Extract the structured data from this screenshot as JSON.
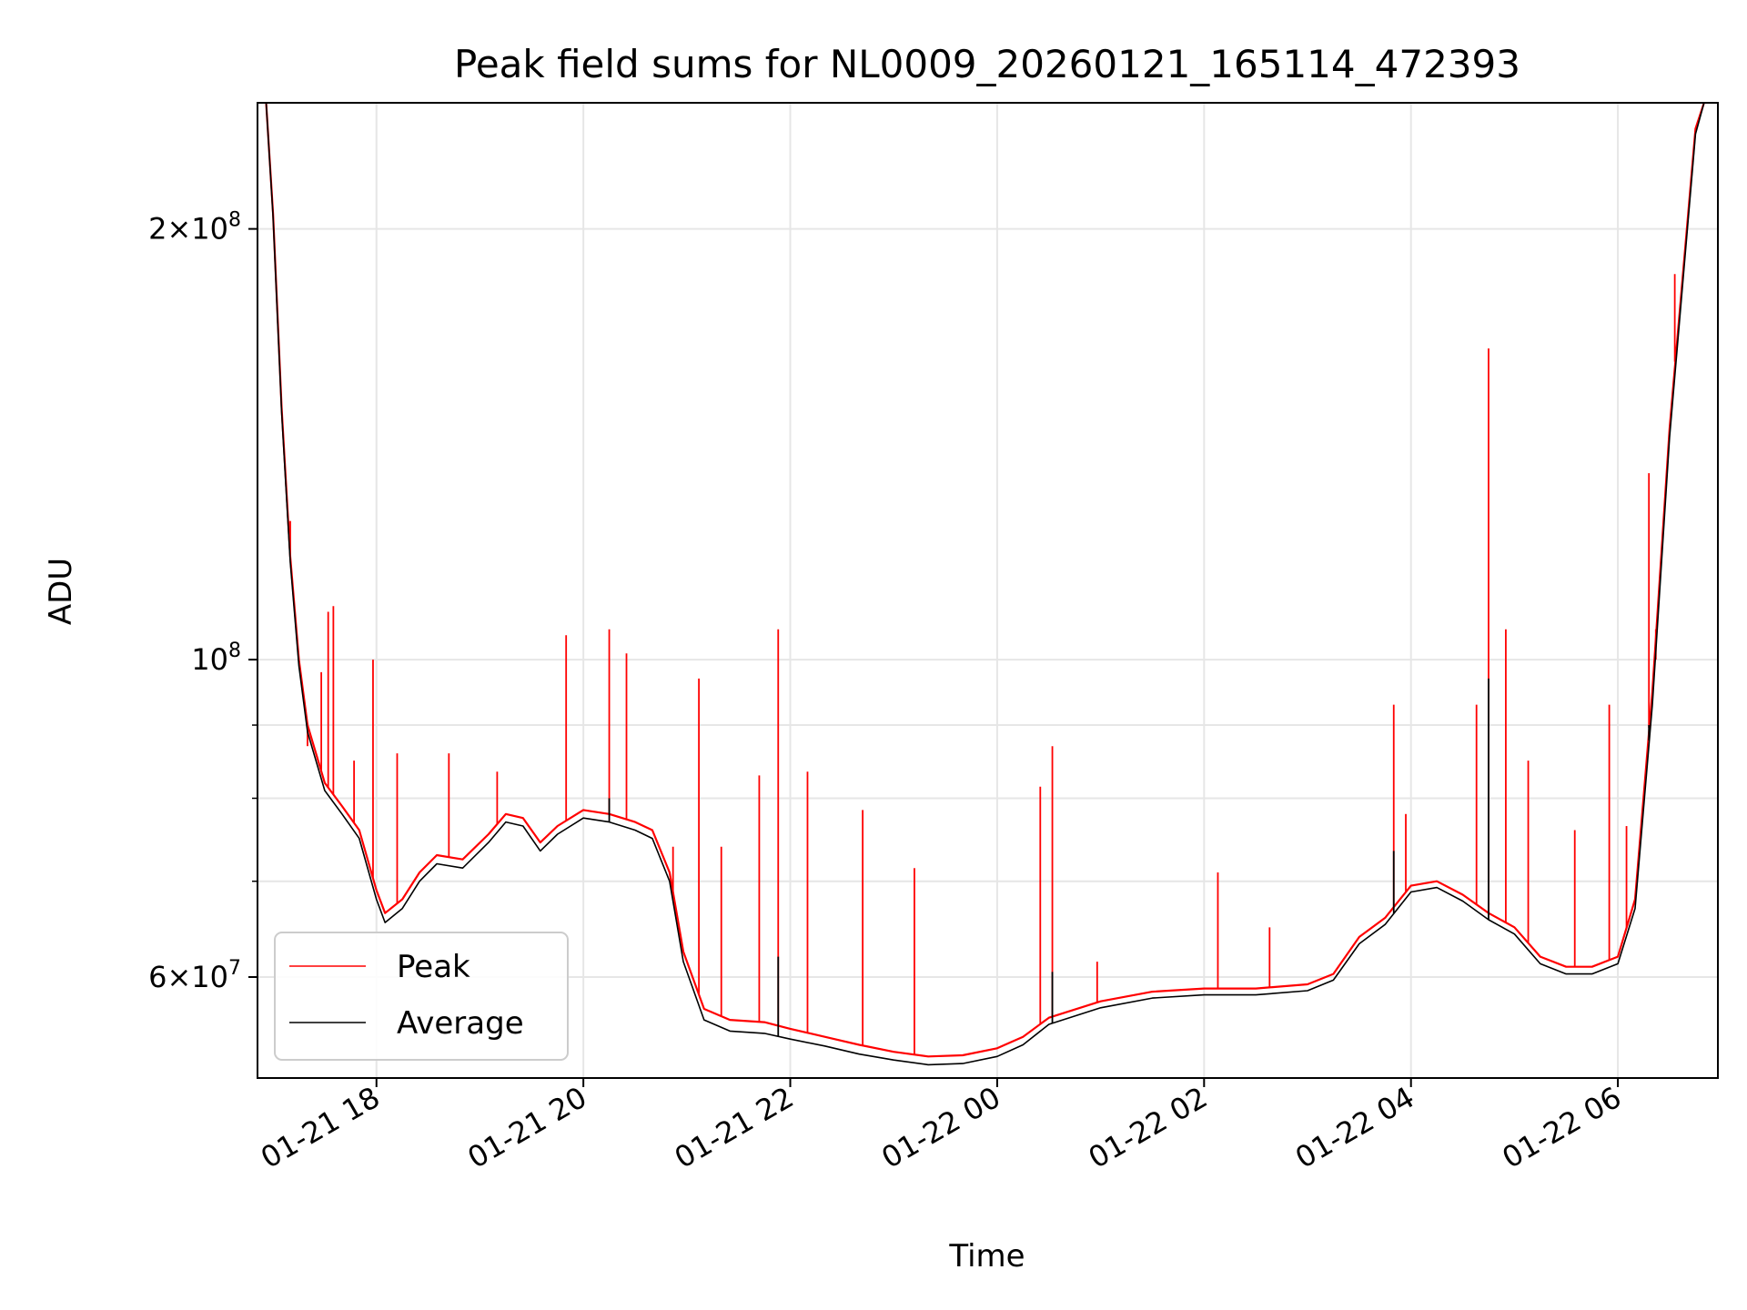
{
  "chart_data": {
    "type": "line",
    "title": "Peak field sums for NL0009_20260121_165114_472393",
    "xlabel": "Time",
    "ylabel": "ADU",
    "yscale": "log",
    "ylim": [
      51000000,
      245000000
    ],
    "xlim": [
      "01-21 16:51",
      "01-22 06:58"
    ],
    "grid": true,
    "legend_position": "lower-left",
    "x_tick_labels": [
      "01-21 18",
      "01-21 20",
      "01-21 22",
      "01-22 00",
      "01-22 02",
      "01-22 04",
      "01-22 06"
    ],
    "x_tick_times": [
      "01-21 18:00",
      "01-21 20:00",
      "01-21 22:00",
      "01-22 00:00",
      "01-22 02:00",
      "01-22 04:00",
      "01-22 06:00"
    ],
    "y_tick_labels": [
      {
        "value": 200000000,
        "mantissa": "2",
        "exponent": "8"
      },
      {
        "value": 100000000,
        "mantissa": "",
        "exponent": "8"
      },
      {
        "value": 60000000,
        "mantissa": "6",
        "exponent": "7"
      }
    ],
    "y_minor_ticks": [
      70000000,
      80000000,
      90000000
    ],
    "series": [
      {
        "name": "Peak",
        "color": "#ff0000",
        "points": [
          [
            "01-21 16:56",
            245000000
          ],
          [
            "01-21 17:00",
            205000000
          ],
          [
            "01-21 17:05",
            150000000
          ],
          [
            "01-21 17:10",
            118000000
          ],
          [
            "01-21 17:15",
            100000000
          ],
          [
            "01-21 17:20",
            90000000
          ],
          [
            "01-21 17:30",
            82000000
          ],
          [
            "01-21 17:40",
            79000000
          ],
          [
            "01-21 17:50",
            76000000
          ],
          [
            "01-21 18:00",
            69000000
          ],
          [
            "01-21 18:05",
            66500000
          ],
          [
            "01-21 18:15",
            68000000
          ],
          [
            "01-21 18:25",
            71000000
          ],
          [
            "01-21 18:35",
            73000000
          ],
          [
            "01-21 18:50",
            72500000
          ],
          [
            "01-21 19:05",
            75500000
          ],
          [
            "01-21 19:15",
            78000000
          ],
          [
            "01-21 19:25",
            77500000
          ],
          [
            "01-21 19:35",
            74500000
          ],
          [
            "01-21 19:45",
            76500000
          ],
          [
            "01-21 20:00",
            78500000
          ],
          [
            "01-21 20:15",
            78000000
          ],
          [
            "01-21 20:30",
            77000000
          ],
          [
            "01-21 20:40",
            76000000
          ],
          [
            "01-21 20:50",
            71000000
          ],
          [
            "01-21 20:58",
            62500000
          ],
          [
            "01-21 21:10",
            57000000
          ],
          [
            "01-21 21:25",
            56000000
          ],
          [
            "01-21 21:45",
            55800000
          ],
          [
            "01-21 22:00",
            55200000
          ],
          [
            "01-21 22:20",
            54500000
          ],
          [
            "01-21 22:40",
            53800000
          ],
          [
            "01-21 23:00",
            53200000
          ],
          [
            "01-21 23:20",
            52800000
          ],
          [
            "01-21 23:40",
            52900000
          ],
          [
            "01-22 00:00",
            53500000
          ],
          [
            "01-22 00:15",
            54500000
          ],
          [
            "01-22 00:30",
            56200000
          ],
          [
            "01-22 01:00",
            57700000
          ],
          [
            "01-22 01:30",
            58600000
          ],
          [
            "01-22 02:00",
            58900000
          ],
          [
            "01-22 02:30",
            58900000
          ],
          [
            "01-22 03:00",
            59300000
          ],
          [
            "01-22 03:15",
            60300000
          ],
          [
            "01-22 03:30",
            64000000
          ],
          [
            "01-22 03:45",
            66000000
          ],
          [
            "01-22 04:00",
            69500000
          ],
          [
            "01-22 04:15",
            70000000
          ],
          [
            "01-22 04:30",
            68500000
          ],
          [
            "01-22 04:45",
            66500000
          ],
          [
            "01-22 05:00",
            65000000
          ],
          [
            "01-22 05:15",
            62000000
          ],
          [
            "01-22 05:30",
            61000000
          ],
          [
            "01-22 05:45",
            61000000
          ],
          [
            "01-22 06:00",
            62000000
          ],
          [
            "01-22 06:10",
            68000000
          ],
          [
            "01-22 06:20",
            95000000
          ],
          [
            "01-22 06:30",
            145000000
          ],
          [
            "01-22 06:40",
            200000000
          ],
          [
            "01-22 06:45",
            235000000
          ],
          [
            "01-22 06:50",
            245000000
          ]
        ],
        "spikes": [
          [
            "01-21 17:10",
            125000000
          ],
          [
            "01-21 17:20",
            87000000
          ],
          [
            "01-21 17:28",
            98000000
          ],
          [
            "01-21 17:32",
            108000000
          ],
          [
            "01-21 17:35",
            109000000
          ],
          [
            "01-21 17:47",
            85000000
          ],
          [
            "01-21 17:58",
            100000000
          ],
          [
            "01-21 18:12",
            86000000
          ],
          [
            "01-21 18:42",
            86000000
          ],
          [
            "01-21 19:10",
            83500000
          ],
          [
            "01-21 19:50",
            104000000
          ],
          [
            "01-21 20:15",
            105000000
          ],
          [
            "01-21 20:25",
            101000000
          ],
          [
            "01-21 20:52",
            74000000
          ],
          [
            "01-21 21:07",
            97000000
          ],
          [
            "01-21 21:20",
            74000000
          ],
          [
            "01-21 21:42",
            83000000
          ],
          [
            "01-21 21:53",
            105000000
          ],
          [
            "01-21 22:10",
            83500000
          ],
          [
            "01-21 22:42",
            78500000
          ],
          [
            "01-21 23:12",
            71500000
          ],
          [
            "01-22 00:25",
            81500000
          ],
          [
            "01-22 00:32",
            87000000
          ],
          [
            "01-22 00:58",
            61500000
          ],
          [
            "01-22 02:08",
            71000000
          ],
          [
            "01-22 02:38",
            65000000
          ],
          [
            "01-22 03:50",
            93000000
          ],
          [
            "01-22 03:57",
            78000000
          ],
          [
            "01-22 04:38",
            93000000
          ],
          [
            "01-22 04:45",
            165000000
          ],
          [
            "01-22 04:55",
            105000000
          ],
          [
            "01-22 05:08",
            85000000
          ],
          [
            "01-22 05:35",
            76000000
          ],
          [
            "01-22 05:55",
            93000000
          ],
          [
            "01-22 06:05",
            76500000
          ],
          [
            "01-22 06:18",
            135000000
          ],
          [
            "01-22 06:22",
            100000000
          ],
          [
            "01-22 06:33",
            186000000
          ]
        ]
      },
      {
        "name": "Average",
        "color": "#000000",
        "points": [
          [
            "01-21 16:56",
            245000000
          ],
          [
            "01-21 17:00",
            204000000
          ],
          [
            "01-21 17:05",
            149000000
          ],
          [
            "01-21 17:10",
            117000000
          ],
          [
            "01-21 17:15",
            99000000
          ],
          [
            "01-21 17:20",
            89000000
          ],
          [
            "01-21 17:30",
            81000000
          ],
          [
            "01-21 17:40",
            78000000
          ],
          [
            "01-21 17:50",
            75000000
          ],
          [
            "01-21 18:00",
            68000000
          ],
          [
            "01-21 18:05",
            65500000
          ],
          [
            "01-21 18:15",
            67000000
          ],
          [
            "01-21 18:25",
            70000000
          ],
          [
            "01-21 18:35",
            72000000
          ],
          [
            "01-21 18:50",
            71500000
          ],
          [
            "01-21 19:05",
            74500000
          ],
          [
            "01-21 19:15",
            77000000
          ],
          [
            "01-21 19:25",
            76500000
          ],
          [
            "01-21 19:35",
            73500000
          ],
          [
            "01-21 19:45",
            75500000
          ],
          [
            "01-21 20:00",
            77500000
          ],
          [
            "01-21 20:15",
            77000000
          ],
          [
            "01-21 20:30",
            76000000
          ],
          [
            "01-21 20:40",
            75000000
          ],
          [
            "01-21 20:50",
            70000000
          ],
          [
            "01-21 20:58",
            61500000
          ],
          [
            "01-21 21:10",
            56000000
          ],
          [
            "01-21 21:25",
            55000000
          ],
          [
            "01-21 21:45",
            54800000
          ],
          [
            "01-21 22:00",
            54300000
          ],
          [
            "01-21 22:20",
            53700000
          ],
          [
            "01-21 22:40",
            53000000
          ],
          [
            "01-21 23:00",
            52500000
          ],
          [
            "01-21 23:20",
            52100000
          ],
          [
            "01-21 23:40",
            52200000
          ],
          [
            "01-22 00:00",
            52800000
          ],
          [
            "01-22 00:15",
            53800000
          ],
          [
            "01-22 00:30",
            55600000
          ],
          [
            "01-22 01:00",
            57100000
          ],
          [
            "01-22 01:30",
            58000000
          ],
          [
            "01-22 02:00",
            58300000
          ],
          [
            "01-22 02:30",
            58300000
          ],
          [
            "01-22 03:00",
            58700000
          ],
          [
            "01-22 03:15",
            59700000
          ],
          [
            "01-22 03:30",
            63300000
          ],
          [
            "01-22 03:45",
            65300000
          ],
          [
            "01-22 04:00",
            68800000
          ],
          [
            "01-22 04:15",
            69300000
          ],
          [
            "01-22 04:30",
            67800000
          ],
          [
            "01-22 04:45",
            65800000
          ],
          [
            "01-22 05:00",
            64300000
          ],
          [
            "01-22 05:15",
            61300000
          ],
          [
            "01-22 05:30",
            60300000
          ],
          [
            "01-22 05:45",
            60300000
          ],
          [
            "01-22 06:00",
            61300000
          ],
          [
            "01-22 06:10",
            67000000
          ],
          [
            "01-22 06:20",
            93000000
          ],
          [
            "01-22 06:30",
            143000000
          ],
          [
            "01-22 06:40",
            198000000
          ],
          [
            "01-22 06:45",
            233000000
          ],
          [
            "01-22 06:50",
            245000000
          ]
        ],
        "spikes": [
          [
            "01-21 20:15",
            80000000
          ],
          [
            "01-21 21:53",
            62000000
          ],
          [
            "01-22 00:32",
            60500000
          ],
          [
            "01-22 03:50",
            73500000
          ],
          [
            "01-22 04:45",
            97000000
          ],
          [
            "01-22 06:18",
            90000000
          ]
        ]
      }
    ]
  }
}
